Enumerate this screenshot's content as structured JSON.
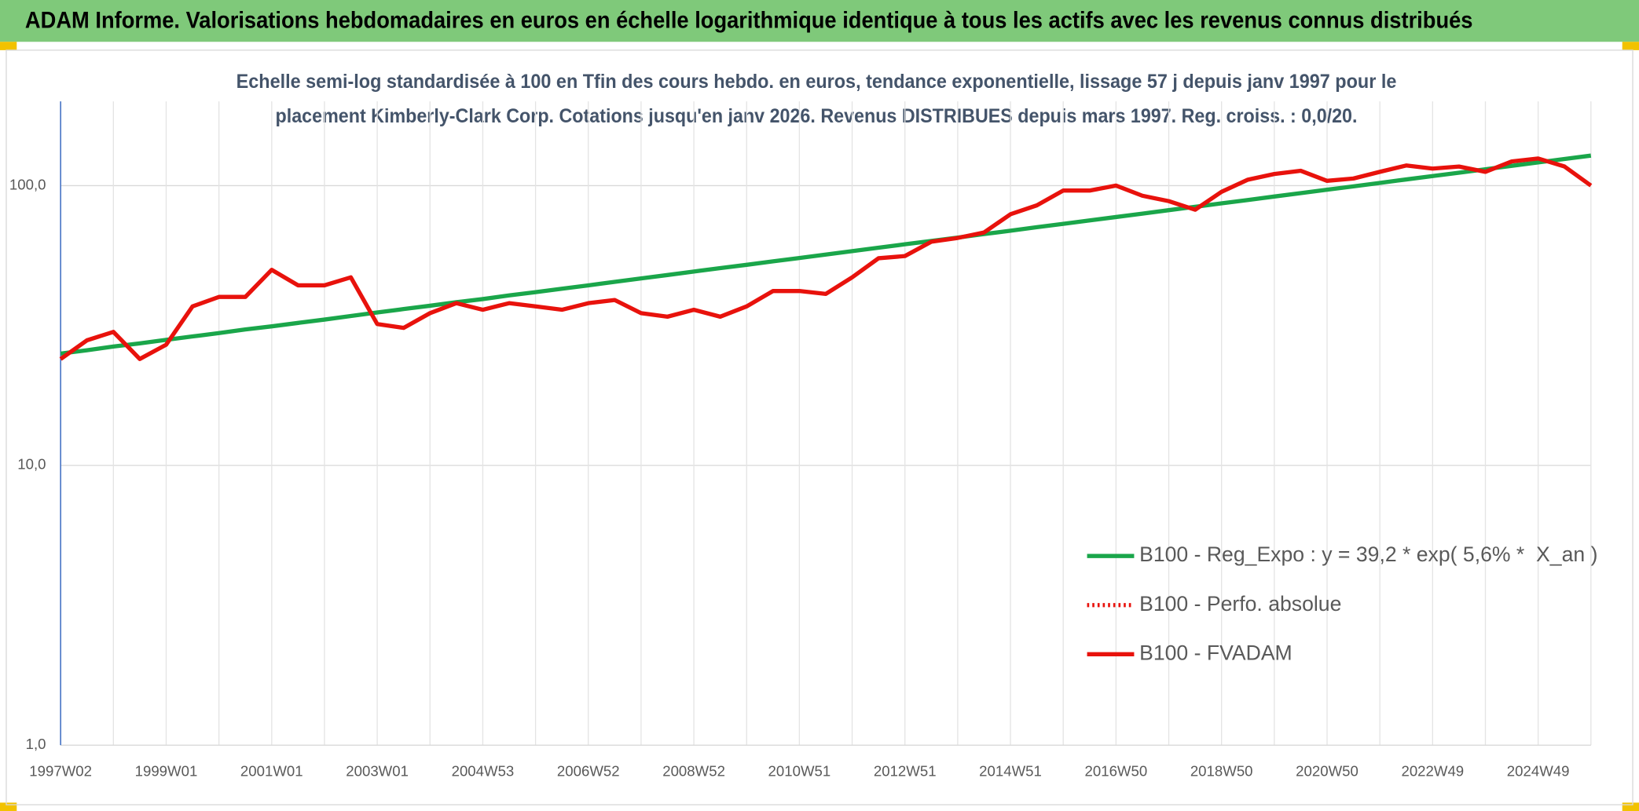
{
  "header": "ADAM Informe. Valorisations hebdomadaires en euros en échelle logarithmique identique à tous les actifs avec les revenus connus distribués",
  "chart_data": {
    "type": "line",
    "title": [
      "Echelle semi-log standardisée à 100 en Tfin des cours hebdo. en euros, tendance exponentielle, lissage 57 j depuis janv 1997 pour le",
      "placement Kimberly-Clark Corp. Cotations jusqu'en janv 2026. Revenus DISTRIBUES depuis mars 1997. Reg. croiss. : 0,0/20."
    ],
    "log_scale": true,
    "grid": true,
    "legend": "lower right",
    "ylim": [
      1,
      200
    ],
    "yticks": [
      {
        "value": 1,
        "label": "1,0"
      },
      {
        "value": 10,
        "label": "10,0"
      },
      {
        "value": 100,
        "label": "100,0"
      }
    ],
    "categories": [
      "1997W02",
      null,
      null,
      null,
      "1999W01",
      null,
      null,
      null,
      "2001W01",
      null,
      null,
      null,
      "2003W01",
      null,
      null,
      null,
      "2004W53",
      null,
      null,
      null,
      "2006W52",
      null,
      null,
      null,
      "2008W52",
      null,
      null,
      null,
      "2010W51",
      null,
      null,
      null,
      "2012W51",
      null,
      null,
      null,
      "2014W51",
      null,
      null,
      null,
      "2016W50",
      null,
      null,
      null,
      "2018W50",
      null,
      null,
      null,
      "2020W50",
      null,
      null,
      null,
      "2022W49",
      null,
      null,
      null,
      "2024W49",
      null,
      null
    ],
    "series": [
      {
        "name": "B100 - Reg_Expo : y = 39,2 * exp( 5,6% *  X_an )",
        "color": "#1aa64a",
        "style": "solid",
        "values": [
          25.1,
          25.8,
          26.6,
          27.3,
          28.1,
          28.9,
          29.7,
          30.6,
          31.4,
          32.3,
          33.2,
          34.2,
          35.2,
          36.2,
          37.2,
          38.3,
          39.3,
          40.5,
          41.6,
          42.8,
          44.0,
          45.3,
          46.6,
          47.9,
          49.3,
          50.7,
          52.1,
          53.6,
          55.1,
          56.7,
          58.3,
          60.0,
          61.7,
          63.4,
          65.2,
          67.1,
          69.0,
          71.0,
          73.0,
          75.1,
          77.2,
          79.4,
          81.7,
          84.0,
          86.4,
          88.8,
          91.4,
          94.0,
          96.7,
          99.4,
          102.2,
          105.2,
          108.2,
          111.2,
          114.4,
          117.7,
          121.0,
          124.5,
          128.0
        ]
      },
      {
        "name": "B100 - Perfo. absolue",
        "color": "#e8120c",
        "style": "dotted",
        "values": [
          24,
          28,
          30,
          24,
          27,
          37,
          40,
          40,
          50,
          44,
          44,
          47,
          32,
          31,
          35,
          38,
          36,
          38,
          37,
          36,
          38,
          39,
          35,
          34,
          36,
          34,
          37,
          42,
          42,
          41,
          47,
          55,
          56,
          63,
          65,
          68,
          79,
          85,
          96,
          96,
          100,
          92,
          88,
          82,
          95,
          105,
          110,
          113,
          104,
          106,
          112,
          118,
          115,
          117,
          112,
          122,
          125,
          117,
          100
        ]
      },
      {
        "name": "B100 - FVADAM",
        "color": "#e8120c",
        "style": "solid",
        "values": [
          24,
          28,
          30,
          24,
          27,
          37,
          40,
          40,
          50,
          44,
          44,
          47,
          32,
          31,
          35,
          38,
          36,
          38,
          37,
          36,
          38,
          39,
          35,
          34,
          36,
          34,
          37,
          42,
          42,
          41,
          47,
          55,
          56,
          63,
          65,
          68,
          79,
          85,
          96,
          96,
          100,
          92,
          88,
          82,
          95,
          105,
          110,
          113,
          104,
          106,
          112,
          118,
          115,
          117,
          112,
          122,
          125,
          117,
          100
        ]
      }
    ]
  }
}
